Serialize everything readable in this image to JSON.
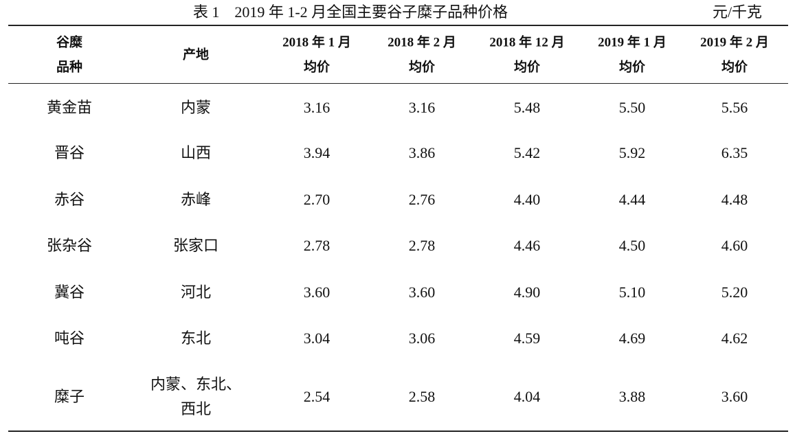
{
  "table": {
    "title": "表 1　2019 年 1-2 月全国主要谷子糜子品种价格",
    "unit": "元/千克",
    "header": [
      [
        "谷糜",
        "品种"
      ],
      [
        "产地"
      ],
      [
        "2018 年 1 月",
        "均价"
      ],
      [
        "2018 年 2 月",
        "均价"
      ],
      [
        "2018 年 12 月",
        "均价"
      ],
      [
        "2019 年 1 月",
        "均价"
      ],
      [
        "2019 年 2 月",
        "均价"
      ]
    ],
    "rows": [
      [
        "黄金苗",
        "内蒙",
        "3.16",
        "3.16",
        "5.48",
        "5.50",
        "5.56"
      ],
      [
        "晋谷",
        "山西",
        "3.94",
        "3.86",
        "5.42",
        "5.92",
        "6.35"
      ],
      [
        "赤谷",
        "赤峰",
        "2.70",
        "2.76",
        "4.40",
        "4.44",
        "4.48"
      ],
      [
        "张杂谷",
        "张家口",
        "2.78",
        "2.78",
        "4.46",
        "4.50",
        "4.60"
      ],
      [
        "冀谷",
        "河北",
        "3.60",
        "3.60",
        "4.90",
        "5.10",
        "5.20"
      ],
      [
        "吨谷",
        "东北",
        "3.04",
        "3.06",
        "4.59",
        "4.69",
        "4.62"
      ],
      [
        "糜子",
        [
          "内蒙、东北、",
          "西北"
        ],
        "2.54",
        "2.58",
        "4.04",
        "3.88",
        "3.60"
      ]
    ]
  }
}
